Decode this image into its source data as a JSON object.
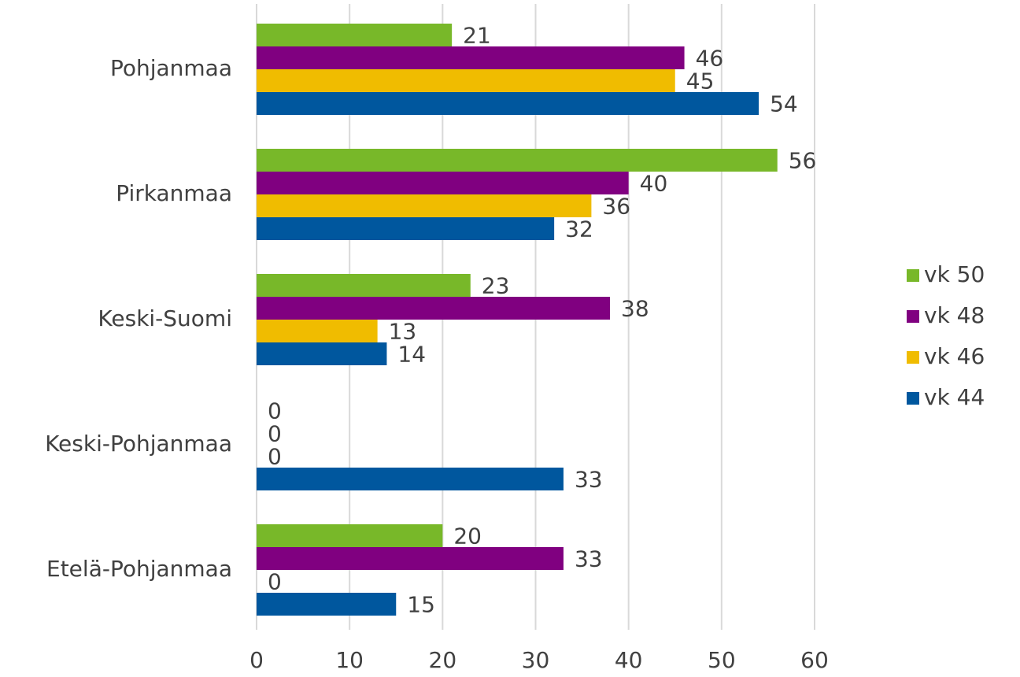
{
  "chart_data": {
    "type": "hbar",
    "categories": [
      "Pohjanmaa",
      "Pirkanmaa",
      "Keski-Suomi",
      "Keski-Pohjanmaa",
      "Etelä-Pohjanmaa"
    ],
    "series": [
      {
        "name": "vk 50",
        "color": "#78b829",
        "values": [
          21,
          56,
          23,
          0,
          20
        ]
      },
      {
        "name": "vk 48",
        "color": "#800080",
        "values": [
          46,
          40,
          38,
          0,
          33
        ]
      },
      {
        "name": "vk 46",
        "color": "#f0bc00",
        "values": [
          45,
          36,
          13,
          0,
          0
        ]
      },
      {
        "name": "vk 44",
        "color": "#00579e",
        "values": [
          54,
          32,
          14,
          33,
          15
        ]
      }
    ],
    "xlim": [
      0,
      60
    ],
    "xticks": [
      0,
      10,
      20,
      30,
      40,
      50,
      60
    ],
    "grid": true,
    "legend": "right"
  }
}
